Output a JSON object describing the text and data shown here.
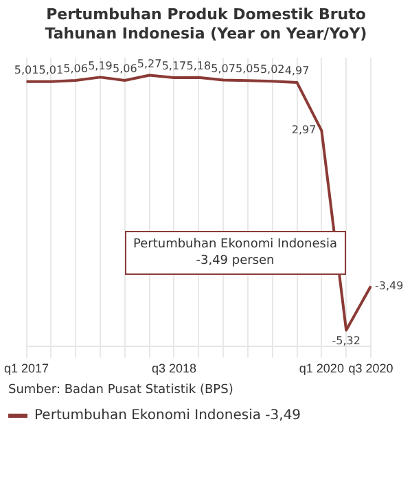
{
  "chart_data": {
    "type": "line",
    "title": "Pertumbuhan Produk Domestik Bruto Tahunan Indonesia (Year on Year/YoY)",
    "categories": [
      "q1 2017",
      null,
      null,
      null,
      null,
      null,
      "q3 2018",
      null,
      null,
      null,
      null,
      null,
      "q1 2020",
      null,
      "q3 2020"
    ],
    "series": [
      {
        "name": "Pertumbuhan Ekonomi Indonesia",
        "color": "#8b3a35",
        "values": [
          5.01,
          5.01,
          5.06,
          5.19,
          5.06,
          5.27,
          5.17,
          5.18,
          5.07,
          5.05,
          5.02,
          4.97,
          2.97,
          -5.32,
          -3.49
        ],
        "value_labels": [
          "5,01",
          "5,01",
          "5,06",
          "5,19",
          "5,06",
          "5,27",
          "5,17",
          "5,18",
          "5,07",
          "5,05",
          "5,02",
          "4,97",
          "2,97",
          "-5,32",
          "-3,49"
        ]
      }
    ],
    "annotations": [
      "Pertumbuhan Ekonomi Indonesia\n-3,49 persen",
      "Sumber: Badan Pusat Statistik (BPS)"
    ],
    "grid": "x",
    "legend": "bottom",
    "marker": "none",
    "line_style": "solid",
    "tick_labels": "x"
  }
}
